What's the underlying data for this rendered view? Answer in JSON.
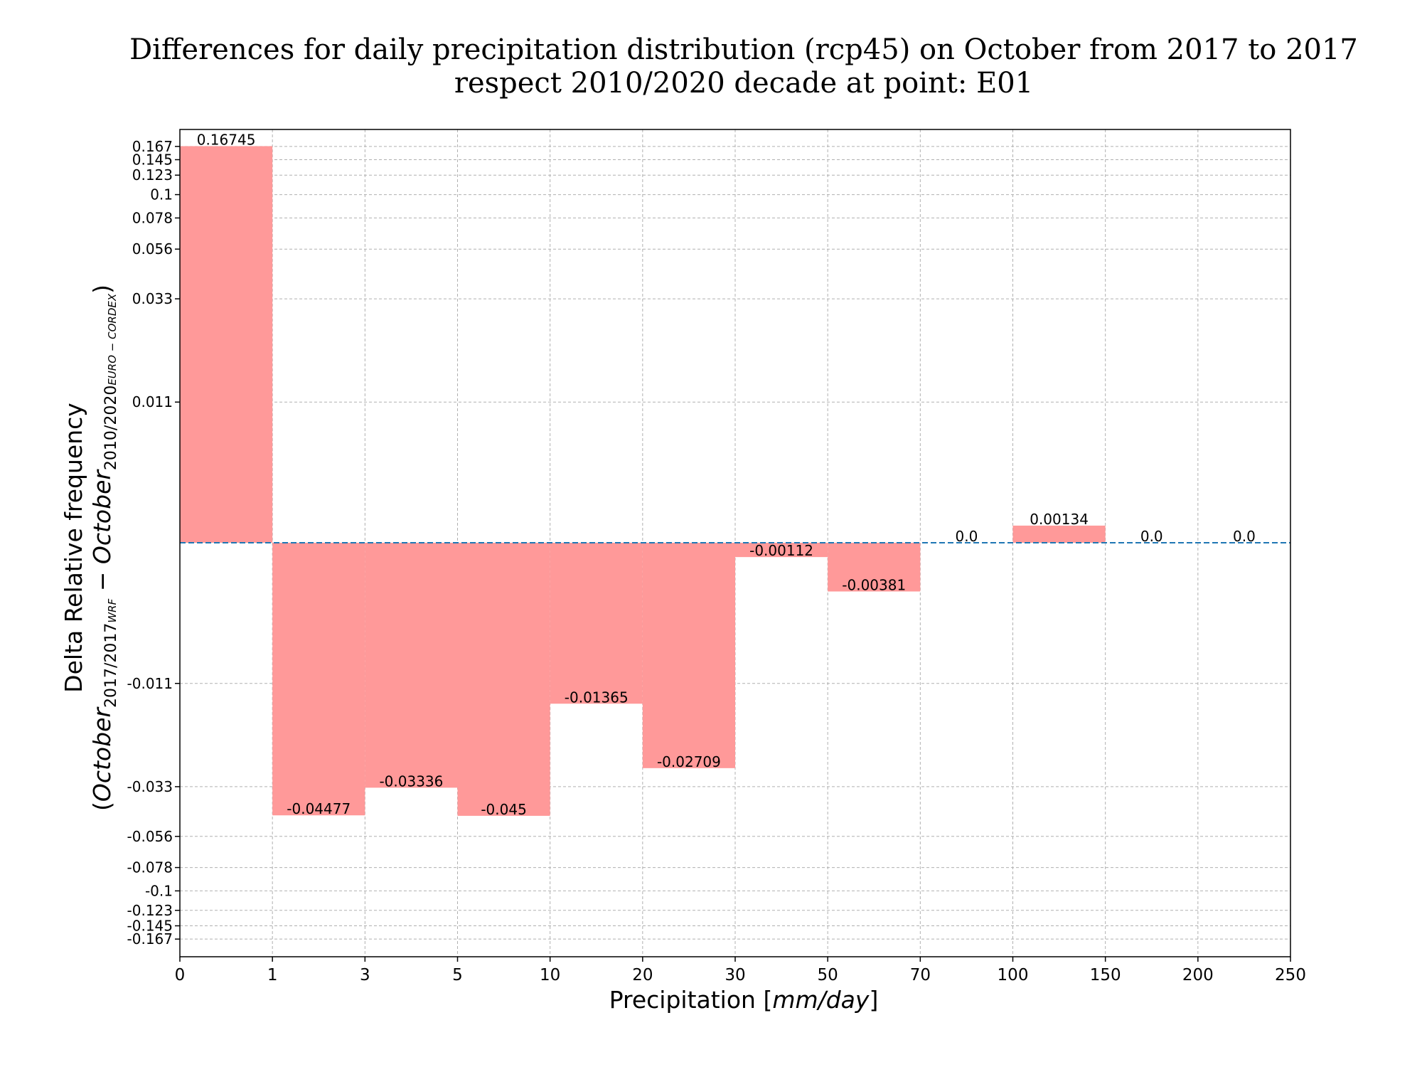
{
  "chart_data": {
    "type": "bar",
    "title": "Differences for daily precipitation distribution (rcp45) on October from 2017 to 2017",
    "subtitle": "respect 2010/2020 decade at point: E01",
    "xlabel_main": "Precipitation [",
    "xlabel_unit": "mm/day",
    "xlabel_end": "]",
    "ylabel_line1": "Delta Relative frequency",
    "ylabel_line2": {
      "open": "(",
      "term1": "October",
      "sub1": "2017/2017",
      "sub1b": "WRF",
      "minus": " − ",
      "term2": "October",
      "sub2": "2010/2020",
      "sub2b": "EURO − CORDEX",
      "close": ")"
    },
    "x_tick_labels": [
      "0",
      "1",
      "3",
      "5",
      "10",
      "20",
      "30",
      "50",
      "70",
      "100",
      "150",
      "200",
      "250"
    ],
    "bins": [
      {
        "from": "0",
        "to": "1",
        "value": 0.16745,
        "label": "0.16745"
      },
      {
        "from": "1",
        "to": "3",
        "value": -0.04477,
        "label": "-0.04477"
      },
      {
        "from": "3",
        "to": "5",
        "value": -0.03336,
        "label": "-0.03336"
      },
      {
        "from": "5",
        "to": "10",
        "value": -0.045,
        "label": "-0.045"
      },
      {
        "from": "10",
        "to": "20",
        "value": -0.01365,
        "label": "-0.01365"
      },
      {
        "from": "20",
        "to": "30",
        "value": -0.02709,
        "label": "-0.02709"
      },
      {
        "from": "30",
        "to": "50",
        "value": -0.00112,
        "label": "-0.00112"
      },
      {
        "from": "50",
        "to": "70",
        "value": -0.00381,
        "label": "-0.00381"
      },
      {
        "from": "70",
        "to": "100",
        "value": 0.0,
        "label": "0.0"
      },
      {
        "from": "100",
        "to": "150",
        "value": 0.00134,
        "label": "0.00134"
      },
      {
        "from": "150",
        "to": "200",
        "value": 0.0,
        "label": "0.0"
      },
      {
        "from": "200",
        "to": "250",
        "value": 0.0,
        "label": "0.0"
      }
    ],
    "y_scale": "symlog",
    "y_ticks": [
      0.167,
      0.145,
      0.123,
      0.1,
      0.078,
      0.056,
      0.033,
      0.011,
      -0.011,
      -0.033,
      -0.056,
      -0.078,
      -0.1,
      -0.123,
      -0.145,
      -0.167
    ],
    "y_tick_labels": [
      "0.167",
      "0.145",
      "0.123",
      "0.1",
      "0.078",
      "0.056",
      "0.033",
      "0.011",
      "-0.011",
      "-0.033",
      "-0.056",
      "-0.078",
      "-0.1",
      "-0.123",
      "-0.145",
      "-0.167"
    ],
    "ylim": [
      -0.2,
      0.2
    ],
    "grid": true,
    "zero_line": true,
    "colors": {
      "bar": "#ff9999",
      "zero_line": "#1f77b4",
      "grid": "#b0b0b0"
    }
  }
}
